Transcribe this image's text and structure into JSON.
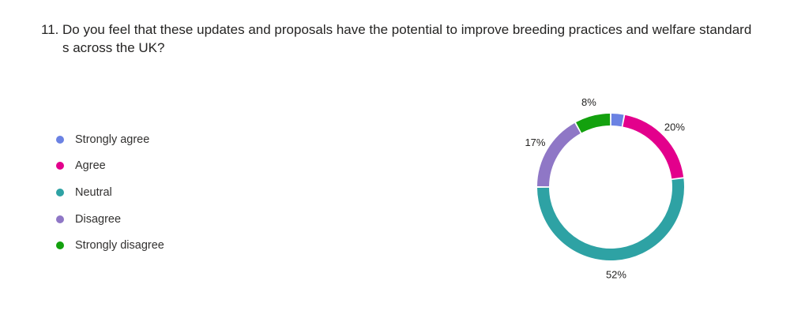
{
  "question": {
    "number": "11.",
    "text": "Do you feel that these updates and proposals have the potential to improve breeding practices and welfare standard s across the UK?"
  },
  "legend": [
    {
      "label": "Strongly agree",
      "color": "#6b82e3"
    },
    {
      "label": "Agree",
      "color": "#e3008c"
    },
    {
      "label": "Neutral",
      "color": "#2ea2a4"
    },
    {
      "label": "Disagree",
      "color": "#8f77c6"
    },
    {
      "label": "Strongly disagree",
      "color": "#13a10e"
    }
  ],
  "chart_data": {
    "type": "pie",
    "style": "donut",
    "categories": [
      "Strongly agree",
      "Agree",
      "Neutral",
      "Disagree",
      "Strongly disagree"
    ],
    "values": [
      3,
      20,
      52,
      17,
      8
    ],
    "data_labels": [
      "",
      "20%",
      "52%",
      "17%",
      "8%"
    ],
    "colors": [
      "#6b82e3",
      "#e3008c",
      "#2ea2a4",
      "#8f77c6",
      "#13a10e"
    ],
    "legend_position": "left"
  }
}
